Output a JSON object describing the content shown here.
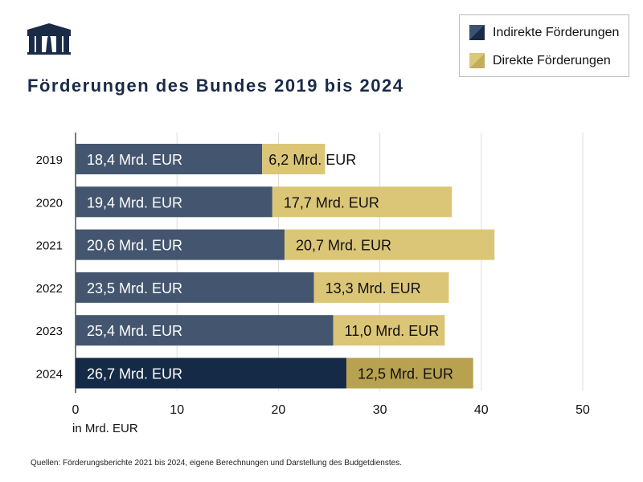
{
  "title": "Förderungen des Bundes 2019 bis 2024",
  "source": "Quellen: Förderungsberichte 2021 bis 2024, eigene Berechnungen und Darstellung des Budgetdienstes.",
  "logo": "parliament-building-icon",
  "legend": [
    {
      "label": "Indirekte Förderungen",
      "color": "#1e3352"
    },
    {
      "label": "Direkte Förderungen",
      "color": "#d5bf6a"
    }
  ],
  "chart_data": {
    "type": "bar",
    "orientation": "horizontal",
    "stacked": true,
    "title": "Förderungen des Bundes 2019 bis 2024",
    "xlabel": "in Mrd. EUR",
    "xlim": [
      0,
      50
    ],
    "xticks": [
      0,
      10,
      20,
      30,
      40,
      50
    ],
    "grid": true,
    "legend_position": "top-right",
    "categories": [
      "2019",
      "2020",
      "2021",
      "2022",
      "2023",
      "2024"
    ],
    "series": [
      {
        "name": "Indirekte Förderungen",
        "values": [
          18.4,
          19.4,
          20.6,
          23.5,
          25.4,
          26.7
        ],
        "labels": [
          "18,4 Mrd. EUR",
          "19,4 Mrd. EUR",
          "20,6 Mrd. EUR",
          "23,5 Mrd. EUR",
          "25,4 Mrd. EUR",
          "26,7 Mrd. EUR"
        ],
        "color": "#44566f",
        "highlight_color": "#152a47"
      },
      {
        "name": "Direkte Förderungen",
        "values": [
          6.2,
          17.7,
          20.7,
          13.3,
          11.0,
          12.5
        ],
        "labels": [
          "6,2 Mrd. EUR",
          "17,7 Mrd. EUR",
          "20,7 Mrd. EUR",
          "13,3 Mrd. EUR",
          "11,0 Mrd. EUR",
          "12,5 Mrd. EUR"
        ],
        "color": "#dbc677",
        "highlight_color": "#b8a250"
      }
    ]
  }
}
